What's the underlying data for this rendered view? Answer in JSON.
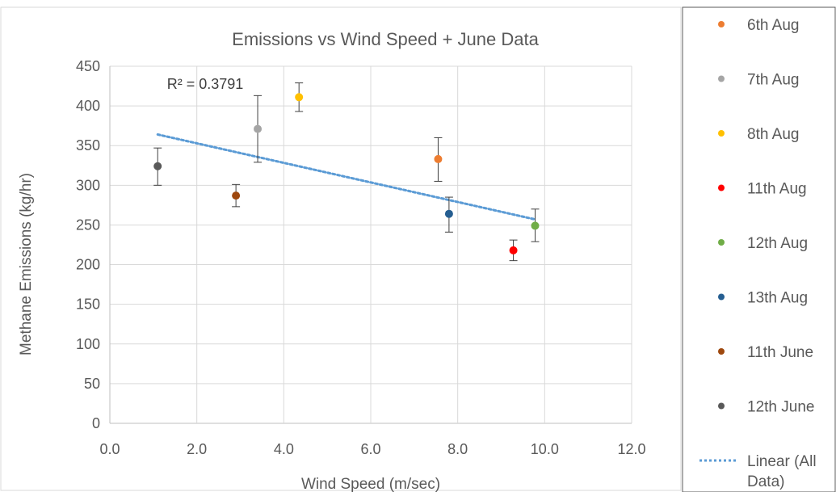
{
  "chart_data": {
    "type": "scatter",
    "title": "Emissions vs Wind Speed + June Data",
    "xlabel": "Wind Speed (m/sec)",
    "ylabel": "Methane Emissions (kg/hr)",
    "xlim": [
      0,
      12
    ],
    "ylim": [
      0,
      450
    ],
    "x_ticks": [
      "0.0",
      "2.0",
      "4.0",
      "6.0",
      "8.0",
      "10.0",
      "12.0"
    ],
    "y_ticks": [
      "0",
      "50",
      "100",
      "150",
      "200",
      "250",
      "300",
      "350",
      "400",
      "450"
    ],
    "grid": true,
    "legend_position": "right",
    "annotation": "R² = 0.3791",
    "series": [
      {
        "name": "6th Aug",
        "color": "#ED7D31",
        "x": 7.55,
        "y": 333,
        "err_low": 305,
        "err_high": 360
      },
      {
        "name": "7th Aug",
        "color": "#A5A5A5",
        "x": 3.4,
        "y": 371,
        "err_low": 329,
        "err_high": 413
      },
      {
        "name": "8th Aug",
        "color": "#FFC000",
        "x": 4.35,
        "y": 411,
        "err_low": 393,
        "err_high": 429
      },
      {
        "name": "11th Aug",
        "color": "#FF0000",
        "x": 9.28,
        "y": 218,
        "err_low": 205,
        "err_high": 231
      },
      {
        "name": "12th Aug",
        "color": "#70AD47",
        "x": 9.78,
        "y": 249,
        "err_low": 229,
        "err_high": 270
      },
      {
        "name": "13th Aug",
        "color": "#255E91",
        "x": 7.8,
        "y": 264,
        "err_low": 241,
        "err_high": 285
      },
      {
        "name": "11th June",
        "color": "#9E480E",
        "x": 2.9,
        "y": 287,
        "err_low": 273,
        "err_high": 301
      },
      {
        "name": "12th June",
        "color": "#595959",
        "x": 1.1,
        "y": 324,
        "err_low": 300,
        "err_high": 347
      }
    ],
    "trendline": {
      "name": "Linear (All Data)",
      "color": "#5B9BD5",
      "x": [
        1.1,
        9.78
      ],
      "y": [
        364,
        257
      ]
    }
  }
}
